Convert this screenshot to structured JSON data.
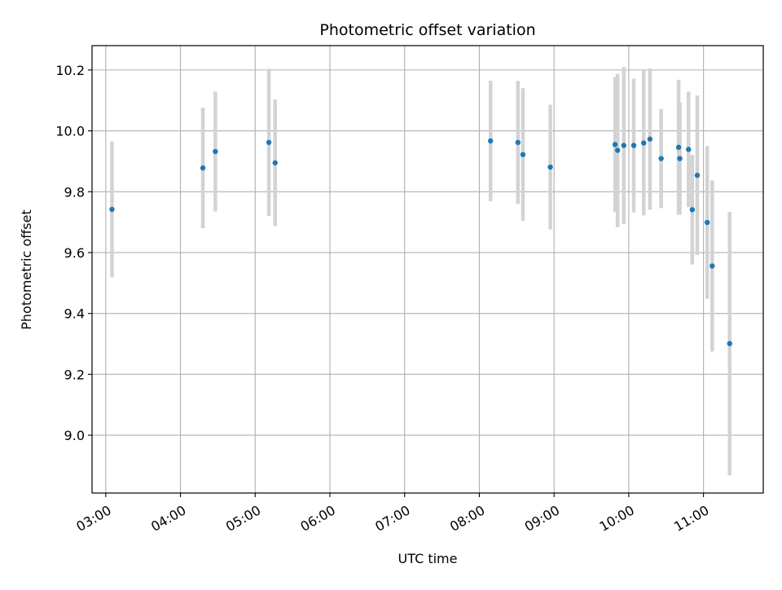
{
  "chart_data": {
    "type": "scatter",
    "title": "Photometric offset variation",
    "xlabel": "UTC time",
    "ylabel": "Photometric offset",
    "x_ticks": [
      "03:00",
      "04:00",
      "05:00",
      "06:00",
      "07:00",
      "08:00",
      "09:00",
      "10:00",
      "11:00"
    ],
    "y_ticks": [
      "9.0",
      "9.2",
      "9.4",
      "9.6",
      "9.8",
      "10.0",
      "10.2"
    ],
    "xlim": [
      "02:49",
      "11:48"
    ],
    "ylim": [
      8.81,
      10.28
    ],
    "grid": true,
    "colors": {
      "point": "#1f77b4",
      "errorbar": "#d3d3d3",
      "grid": "#b0b0b0",
      "axes": "#000000"
    },
    "points": [
      {
        "x": "03:05",
        "y": 9.742,
        "yerr": 0.223
      },
      {
        "x": "04:18",
        "y": 9.878,
        "yerr": 0.198
      },
      {
        "x": "04:28",
        "y": 9.932,
        "yerr": 0.197
      },
      {
        "x": "05:11",
        "y": 9.962,
        "yerr": 0.242
      },
      {
        "x": "05:16",
        "y": 9.895,
        "yerr": 0.208
      },
      {
        "x": "08:09",
        "y": 9.967,
        "yerr": 0.198
      },
      {
        "x": "08:31",
        "y": 9.962,
        "yerr": 0.202
      },
      {
        "x": "08:35",
        "y": 9.922,
        "yerr": 0.218
      },
      {
        "x": "08:57",
        "y": 9.881,
        "yerr": 0.205
      },
      {
        "x": "09:49",
        "y": 9.955,
        "yerr": 0.222
      },
      {
        "x": "09:51",
        "y": 9.936,
        "yerr": 0.252
      },
      {
        "x": "09:56",
        "y": 9.952,
        "yerr": 0.258
      },
      {
        "x": "10:04",
        "y": 9.952,
        "yerr": 0.22
      },
      {
        "x": "10:12",
        "y": 9.96,
        "yerr": 0.238
      },
      {
        "x": "10:17",
        "y": 9.973,
        "yerr": 0.232
      },
      {
        "x": "10:26",
        "y": 9.909,
        "yerr": 0.163
      },
      {
        "x": "10:40",
        "y": 9.946,
        "yerr": 0.222
      },
      {
        "x": "10:41",
        "y": 9.909,
        "yerr": 0.185
      },
      {
        "x": "10:48",
        "y": 9.939,
        "yerr": 0.19
      },
      {
        "x": "10:51",
        "y": 9.741,
        "yerr": 0.18
      },
      {
        "x": "10:55",
        "y": 9.854,
        "yerr": 0.262
      },
      {
        "x": "11:03",
        "y": 9.699,
        "yerr": 0.251
      },
      {
        "x": "11:07",
        "y": 9.556,
        "yerr": 0.281
      },
      {
        "x": "11:21",
        "y": 9.301,
        "yerr": 0.433
      }
    ]
  }
}
